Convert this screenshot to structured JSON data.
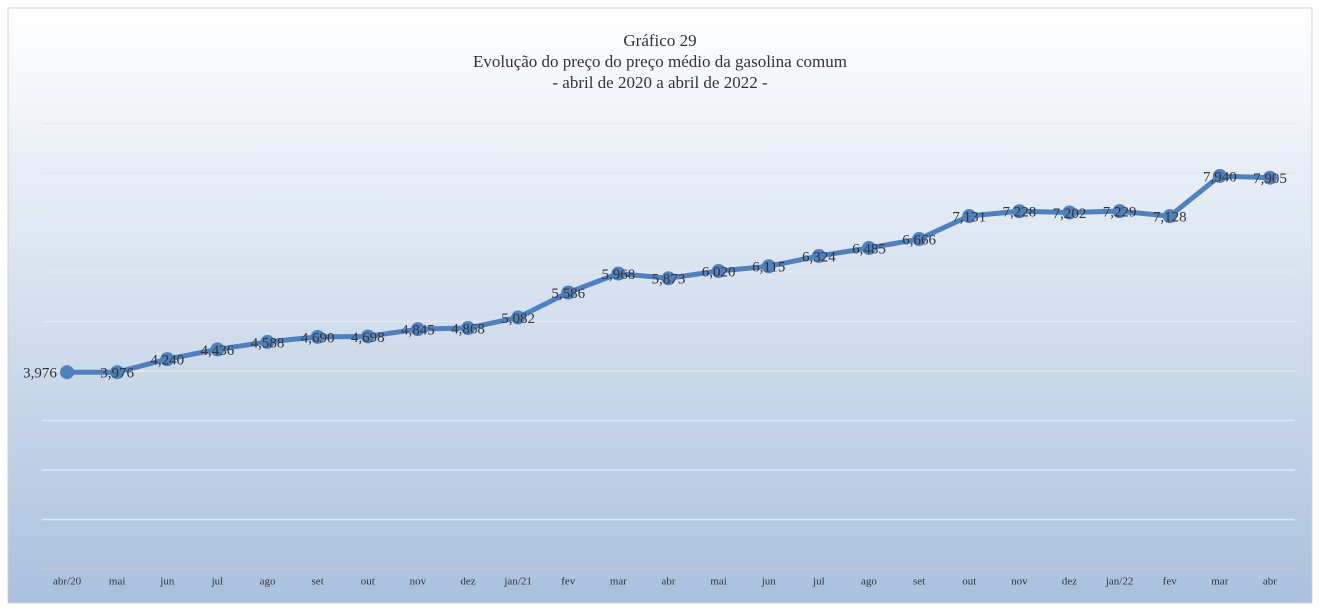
{
  "chart_data": {
    "type": "line",
    "title": "Gráfico 29",
    "subtitle": [
      "Evolução do preço do preço médio da gasolina comum",
      "- abril de 2020 a abril de 2022 -"
    ],
    "categories": [
      "abr/20",
      "mai",
      "jun",
      "jul",
      "ago",
      "set",
      "out",
      "nov",
      "dez",
      "jan/21",
      "fev",
      "mar",
      "abr",
      "mai",
      "jun",
      "jul",
      "ago",
      "set",
      "out",
      "nov",
      "dez",
      "jan/22",
      "fev",
      "mar",
      "abr"
    ],
    "values": [
      3.976,
      3.976,
      4.24,
      4.436,
      4.588,
      4.69,
      4.698,
      4.845,
      4.868,
      5.082,
      5.586,
      5.968,
      5.873,
      6.02,
      6.115,
      6.324,
      6.485,
      6.666,
      7.131,
      7.228,
      7.202,
      7.229,
      7.128,
      7.94,
      7.905
    ],
    "value_labels": [
      "3,976",
      "3,976",
      "4,240",
      "4,436",
      "4,588",
      "4,690",
      "4,698",
      "4,845",
      "4,868",
      "5,082",
      "5,586",
      "5,968",
      "5,873",
      "6,020",
      "6,115",
      "6,324",
      "6,485",
      "6,666",
      "7,131",
      "7,228",
      "7,202",
      "7,229",
      "7,128",
      "7,940",
      "7,905"
    ],
    "color": "#4f81bd",
    "ylim": [
      0,
      9
    ],
    "yticks": [
      0,
      1,
      2,
      3,
      4,
      5,
      6,
      7,
      8,
      9
    ],
    "grid": true
  }
}
